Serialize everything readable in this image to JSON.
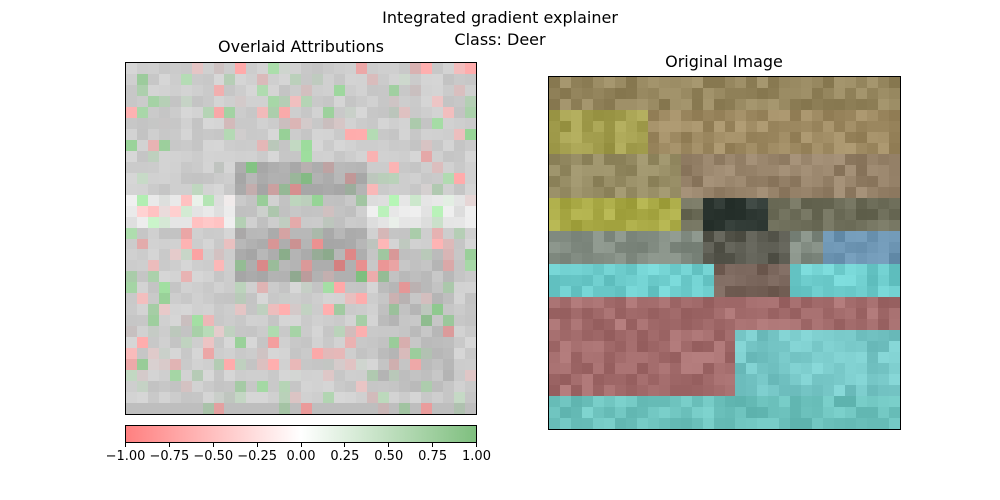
{
  "suptitle": {
    "line1": "Integrated gradient explainer",
    "line2": "Class: Deer"
  },
  "left_panel": {
    "title": "Overlaid Attributions"
  },
  "right_panel": {
    "title": "Original Image"
  },
  "colorbar": {
    "ticks": [
      "−1.00",
      "−0.75",
      "−0.50",
      "−0.25",
      "0.00",
      "0.25",
      "0.50",
      "0.75",
      "1.00"
    ],
    "min_color": "#ff8080",
    "mid_color": "#ffffff",
    "max_color": "#7fbf7f"
  },
  "chart_data": [
    {
      "type": "heatmap",
      "title": "Overlaid Attributions",
      "grid_size": [
        32,
        32
      ],
      "value_range": [
        -1.0,
        1.0
      ],
      "colorbar_ticks": [
        -1.0,
        -0.75,
        -0.5,
        -0.25,
        0.0,
        0.25,
        0.5,
        0.75,
        1.0
      ]
    },
    {
      "type": "heatmap",
      "title": "Original Image",
      "grid_size": [
        32,
        32
      ]
    }
  ]
}
